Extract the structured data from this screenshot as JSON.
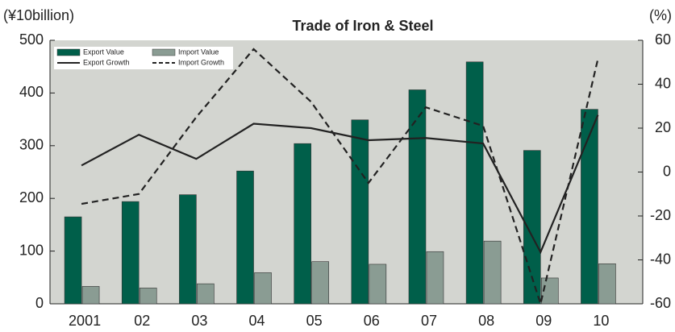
{
  "chart_data": {
    "type": "bar_line",
    "title": "Trade of Iron & Steel",
    "y_label": "(¥10billion)",
    "y2_label": "(%)",
    "categories": [
      "2001",
      "02",
      "03",
      "04",
      "05",
      "06",
      "07",
      "08",
      "09",
      "10"
    ],
    "series": [
      {
        "name": "Export Value",
        "kind": "bar",
        "color": "#005f4a",
        "values": [
          165,
          194,
          207,
          252,
          304,
          349,
          406,
          459,
          291,
          369
        ]
      },
      {
        "name": "Import Value",
        "kind": "bar",
        "color": "#8a9c93",
        "values": [
          33,
          30,
          38,
          59,
          80,
          75,
          99,
          119,
          49,
          76
        ]
      },
      {
        "name": "Export Growth",
        "kind": "line",
        "axis": "y2",
        "color": "#222222",
        "style": "solid",
        "values": [
          3,
          17,
          6,
          22,
          20,
          14.5,
          15.5,
          13,
          -36.5,
          26
        ]
      },
      {
        "name": "Import Growth",
        "kind": "line",
        "axis": "y2",
        "color": "#222222",
        "style": "dashed",
        "values": [
          -14.5,
          -10,
          25,
          56,
          32,
          -5,
          29.5,
          21,
          -60,
          51.5
        ]
      }
    ],
    "ylim": [
      0,
      500
    ],
    "yticks": [
      0,
      100,
      200,
      300,
      400,
      500
    ],
    "y2lim": [
      -60,
      60
    ],
    "y2ticks": [
      -60,
      -40,
      -20,
      0,
      20,
      40,
      60
    ],
    "legend": "top-left"
  }
}
